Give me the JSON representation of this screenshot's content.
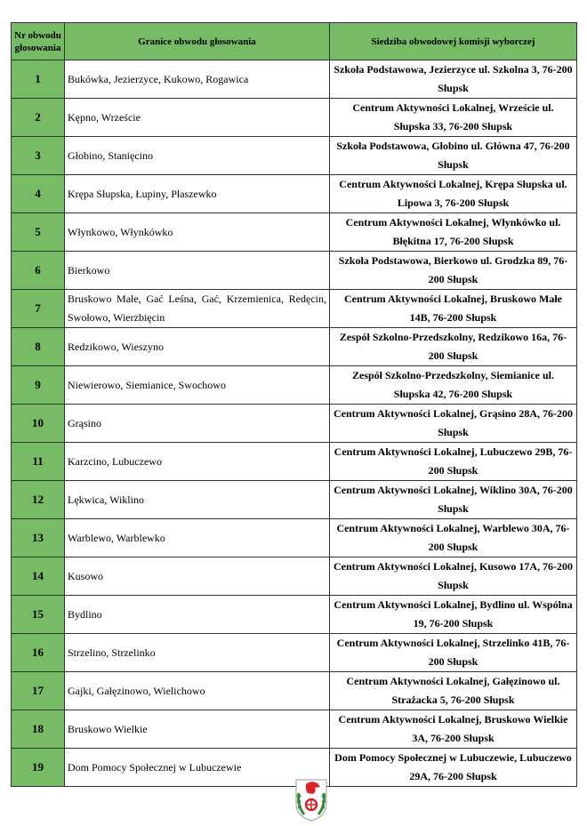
{
  "header": {
    "nr": "Nr obwodu głosowania",
    "granice": "Granice obwodu głosowania",
    "siedziba": "Siedziba obwodowej komisji wyborczej"
  },
  "rows": [
    {
      "nr": "1",
      "granice": "Bukówka, Jezierzyce, Kukowo, Rogawica",
      "siedziba": "Szkoła Podstawowa, Jezierzyce ul. Szkolna 3, 76-200 Słupsk"
    },
    {
      "nr": "2",
      "granice": "Kępno, Wrzeście",
      "siedziba": "Centrum Aktywności Lokalnej, Wrzeście ul. Słupska 33, 76-200 Słupsk"
    },
    {
      "nr": "3",
      "granice": "Głobino, Stanięcino",
      "siedziba": "Szkoła Podstawowa, Głobino ul. Główna 47, 76-200 Słupsk"
    },
    {
      "nr": "4",
      "granice": "Krępa Słupska, Łupiny, Płaszewko",
      "siedziba": "Centrum Aktywności Lokalnej, Krępa Słupska ul. Lipowa 3, 76-200 Słupsk"
    },
    {
      "nr": "5",
      "granice": "Włynkowo, Włynkówko",
      "siedziba": "Centrum Aktywności Lokalnej, Włynkówko ul. Błękitna 17, 76-200 Słupsk"
    },
    {
      "nr": "6",
      "granice": "Bierkowo",
      "siedziba": "Szkoła Podstawowa, Bierkowo ul. Grodzka 89, 76-200 Słupsk"
    },
    {
      "nr": "7",
      "granice": "Bruskowo Małe, Gać Leśna, Gać, Krzemienica, Redęcin, Swołowo, Wierzbięcin",
      "siedziba": "Centrum Aktywności Lokalnej, Bruskowo Małe 14B, 76-200 Słupsk"
    },
    {
      "nr": "8",
      "granice": "Redzikowo, Wieszyno",
      "siedziba": "Zespół Szkolno-Przedszkolny, Redzikowo 16a, 76-200 Słupsk"
    },
    {
      "nr": "9",
      "granice": "Niewierowo, Siemianice, Swochowo",
      "siedziba": "Zespół Szkolno-Przedszkolny, Siemianice ul. Słupska 42, 76-200 Słupsk"
    },
    {
      "nr": "10",
      "granice": "Grąsino",
      "siedziba": "Centrum Aktywności Lokalnej, Grąsino 28A, 76-200 Słupsk"
    },
    {
      "nr": "11",
      "granice": "Karzcino, Lubuczewo",
      "siedziba": "Centrum Aktywności Lokalnej, Lubuczewo 29B, 76-200 Słupsk"
    },
    {
      "nr": "12",
      "granice": "Lękwica, Wiklino",
      "siedziba": "Centrum Aktywności Lokalnej, Wiklino 30A, 76-200 Słupsk"
    },
    {
      "nr": "13",
      "granice": "Warblewo, Warblewko",
      "siedziba": "Centrum Aktywności Lokalnej, Warblewo 30A, 76-200 Słupsk"
    },
    {
      "nr": "14",
      "granice": "Kusowo",
      "siedziba": "Centrum Aktywności Lokalnej, Kusowo 17A, 76-200 Słupsk"
    },
    {
      "nr": "15",
      "granice": "Bydlino",
      "siedziba": "Centrum Aktywności Lokalnej, Bydlino ul. Wspólna 19, 76-200 Słupsk"
    },
    {
      "nr": "16",
      "granice": "Strzelino, Strzelinko",
      "siedziba": "Centrum Aktywności Lokalnej, Strzelinko 41B, 76-200 Słupsk"
    },
    {
      "nr": "17",
      "granice": "Gajki, Gałęzinowo, Wielichowo",
      "siedziba": "Centrum Aktywności Lokalnej, Gałęzinowo ul. Strażacka 5, 76-200 Słupsk"
    },
    {
      "nr": "18",
      "granice": "Bruskowo Wielkie",
      "siedziba": "Centrum Aktywności Lokalnej, Bruskowo Wielkie 3A, 76-200 Słupsk"
    },
    {
      "nr": "19",
      "granice": "Dom Pomocy Społecznej w Lubuczewie",
      "siedziba": "Dom Pomocy Społecznej w Lubuczewie, Lubuczewo 29A, 76-200 Słupsk"
    }
  ],
  "colors": {
    "header_green": "#77bb66"
  },
  "logo": {
    "icon": "coat-of-arms-icon"
  }
}
